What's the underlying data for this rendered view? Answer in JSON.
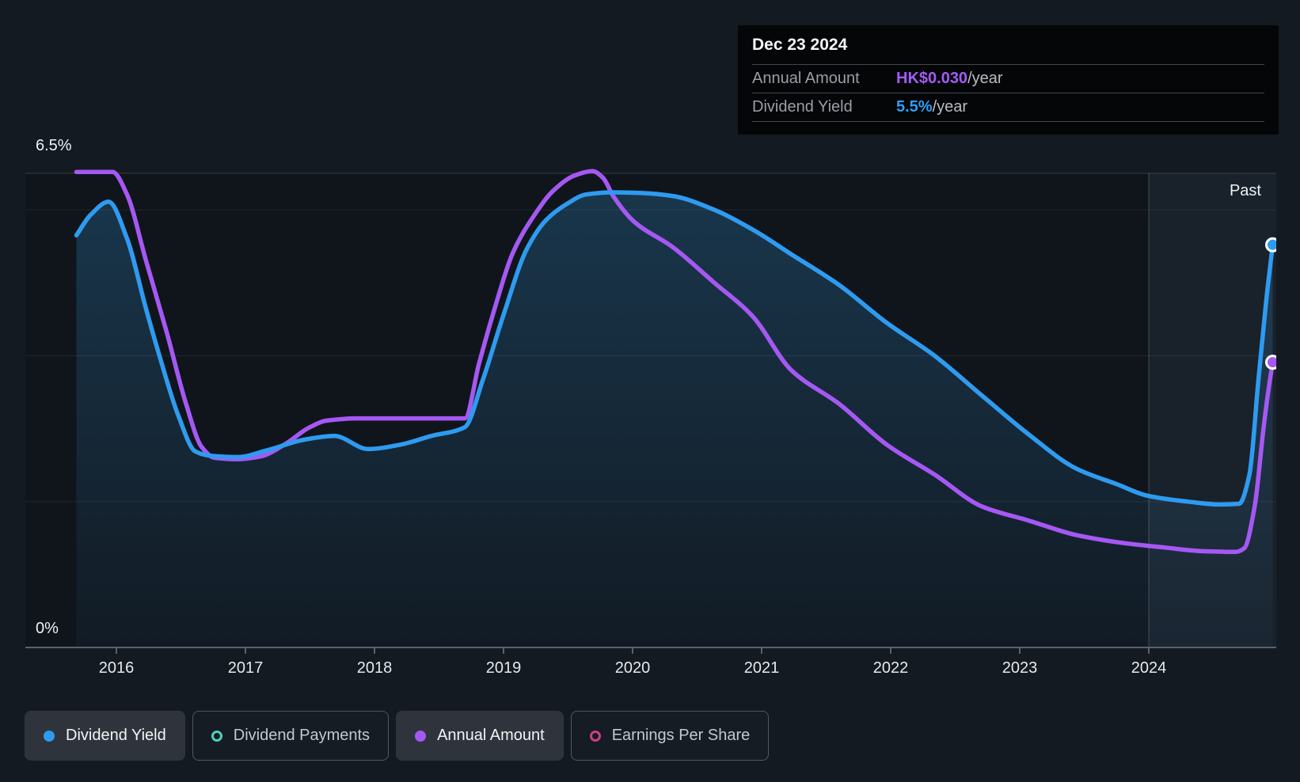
{
  "axis": {
    "y_max_label": "6.5%",
    "y_min_label": "0%",
    "past_label": "Past"
  },
  "tooltip": {
    "date": "Dec 23 2024",
    "rows": [
      {
        "label": "Annual Amount",
        "value": "HK$0.030",
        "suffix": "/year",
        "color": "#a35bf5"
      },
      {
        "label": "Dividend Yield",
        "value": "5.5%",
        "suffix": "/year",
        "color": "#2f9ef5"
      }
    ]
  },
  "legend": [
    {
      "label": "Dividend Yield",
      "marker": "dot",
      "color": "#2e9bf0",
      "active": true
    },
    {
      "label": "Dividend Payments",
      "marker": "ring",
      "color": "#4fd0bb",
      "active": false
    },
    {
      "label": "Annual Amount",
      "marker": "dot",
      "color": "#a558f3",
      "active": true
    },
    {
      "label": "Earnings Per Share",
      "marker": "ring",
      "color": "#c84286",
      "active": false
    }
  ],
  "chart_data": {
    "type": "area",
    "title": "Dividend history",
    "x_axis": {
      "ticks": [
        2016,
        2017,
        2018,
        2019,
        2020,
        2021,
        2022,
        2023,
        2024
      ],
      "range": [
        2015.3,
        2024.99
      ]
    },
    "y_axis": {
      "min": 0,
      "max": 6.5,
      "unit": "%",
      "gridlines": [
        6.5,
        6,
        4,
        2
      ],
      "labeled": [
        6.5,
        0
      ]
    },
    "past_region": {
      "start_year": 2024,
      "label": "Past"
    },
    "grid": true,
    "legend_position": "bottom",
    "series": [
      {
        "name": "Annual Amount",
        "style": "line",
        "color": "#a558f3",
        "note": "plotted against hidden amount scale; y values are display-equivalent percent positions",
        "end_marker": true,
        "points": [
          [
            2015.69,
            6.52
          ],
          [
            2015.97,
            6.52
          ],
          [
            2016.08,
            6.22
          ],
          [
            2016.23,
            5.3
          ],
          [
            2016.39,
            4.32
          ],
          [
            2016.54,
            3.34
          ],
          [
            2016.66,
            2.75
          ],
          [
            2016.76,
            2.6
          ],
          [
            2016.94,
            2.58
          ],
          [
            2017.12,
            2.62
          ],
          [
            2017.31,
            2.79
          ],
          [
            2017.49,
            3.01
          ],
          [
            2017.63,
            3.11
          ],
          [
            2017.86,
            3.14
          ],
          [
            2018.17,
            3.14
          ],
          [
            2018.47,
            3.14
          ],
          [
            2018.7,
            3.14
          ],
          [
            2018.81,
            3.89
          ],
          [
            2018.93,
            4.64
          ],
          [
            2019.07,
            5.4
          ],
          [
            2019.24,
            5.93
          ],
          [
            2019.39,
            6.27
          ],
          [
            2019.55,
            6.47
          ],
          [
            2019.69,
            6.53
          ],
          [
            2019.77,
            6.44
          ],
          [
            2019.85,
            6.19
          ],
          [
            2020.01,
            5.84
          ],
          [
            2020.31,
            5.49
          ],
          [
            2020.62,
            5.02
          ],
          [
            2020.93,
            4.54
          ],
          [
            2021.23,
            3.8
          ],
          [
            2021.6,
            3.34
          ],
          [
            2021.97,
            2.78
          ],
          [
            2022.34,
            2.37
          ],
          [
            2022.71,
            1.93
          ],
          [
            2023.07,
            1.74
          ],
          [
            2023.44,
            1.54
          ],
          [
            2023.81,
            1.43
          ],
          [
            2024.12,
            1.37
          ],
          [
            2024.42,
            1.32
          ],
          [
            2024.67,
            1.31
          ],
          [
            2024.74,
            1.36
          ],
          [
            2024.82,
            1.93
          ],
          [
            2024.89,
            3.02
          ],
          [
            2024.93,
            3.56
          ],
          [
            2024.96,
            3.91
          ]
        ]
      },
      {
        "name": "Dividend Yield",
        "style": "area-line",
        "color": "#2e9bf0",
        "fill_top": "rgba(47,134,191,0.30)",
        "fill_bottom": "rgba(47,134,191,0.05)",
        "end_marker": true,
        "points": [
          [
            2015.69,
            5.65
          ],
          [
            2015.8,
            5.93
          ],
          [
            2015.94,
            6.11
          ],
          [
            2016.08,
            5.62
          ],
          [
            2016.23,
            4.64
          ],
          [
            2016.33,
            4.02
          ],
          [
            2016.48,
            3.18
          ],
          [
            2016.61,
            2.69
          ],
          [
            2016.72,
            2.63
          ],
          [
            2016.94,
            2.61
          ],
          [
            2017.18,
            2.71
          ],
          [
            2017.46,
            2.85
          ],
          [
            2017.69,
            2.9
          ],
          [
            2017.95,
            2.72
          ],
          [
            2018.2,
            2.78
          ],
          [
            2018.44,
            2.9
          ],
          [
            2018.7,
            3.02
          ],
          [
            2018.84,
            3.67
          ],
          [
            2019.0,
            4.56
          ],
          [
            2019.18,
            5.46
          ],
          [
            2019.33,
            5.86
          ],
          [
            2019.49,
            6.08
          ],
          [
            2019.64,
            6.21
          ],
          [
            2019.85,
            6.24
          ],
          [
            2020.07,
            6.23
          ],
          [
            2020.31,
            6.19
          ],
          [
            2020.62,
            6.01
          ],
          [
            2020.93,
            5.73
          ],
          [
            2021.23,
            5.39
          ],
          [
            2021.6,
            4.97
          ],
          [
            2021.97,
            4.45
          ],
          [
            2022.34,
            4.0
          ],
          [
            2022.71,
            3.45
          ],
          [
            2023.07,
            2.92
          ],
          [
            2023.44,
            2.45
          ],
          [
            2023.75,
            2.24
          ],
          [
            2023.99,
            2.08
          ],
          [
            2024.3,
            2.0
          ],
          [
            2024.55,
            1.96
          ],
          [
            2024.7,
            1.97
          ],
          [
            2024.78,
            2.37
          ],
          [
            2024.85,
            3.67
          ],
          [
            2024.91,
            4.75
          ],
          [
            2024.96,
            5.52
          ]
        ]
      }
    ]
  }
}
